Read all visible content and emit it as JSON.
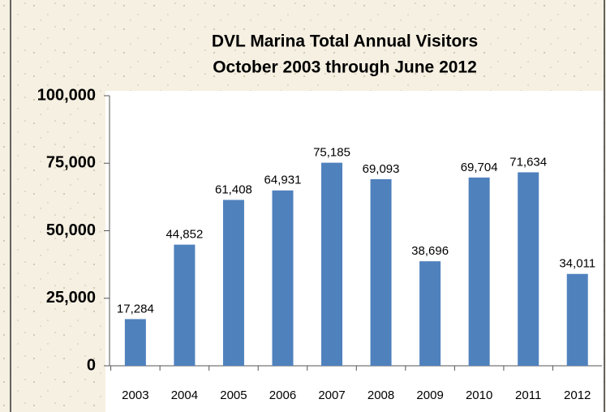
{
  "chart_data": {
    "type": "bar",
    "title": "DVL Marina Total Annual Visitors",
    "subtitle": "October 2003 through June 2012",
    "categories": [
      "2003",
      "2004",
      "2005",
      "2006",
      "2007",
      "2008",
      "2009",
      "2010",
      "2011",
      "2012"
    ],
    "values": [
      17284,
      44852,
      61408,
      64931,
      75185,
      69093,
      38696,
      69704,
      71634,
      34011
    ],
    "value_labels": [
      "17,284",
      "44,852",
      "61,408",
      "64,931",
      "75,185",
      "69,093",
      "38,696",
      "69,704",
      "71,634",
      "34,011"
    ],
    "color": "#4f81bd",
    "ylim": [
      0,
      100000
    ],
    "yticks": [
      0,
      {
        "value": 25000,
        "label": "25,000"
      },
      {
        "value": 50000,
        "label": "50,000"
      },
      {
        "value": 75000,
        "label": "75,000"
      },
      {
        "value": 100000,
        "label": "100,000"
      }
    ],
    "grid": false
  }
}
